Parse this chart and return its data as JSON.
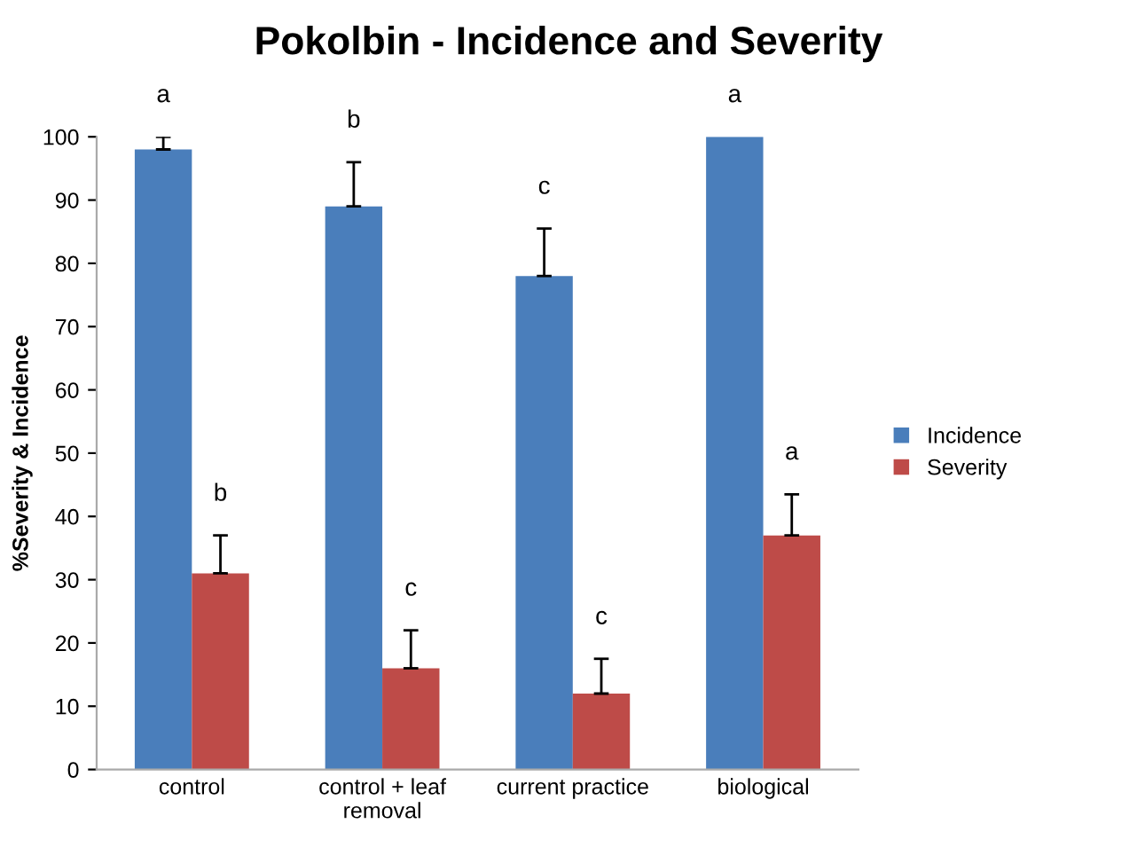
{
  "chart_data": {
    "type": "bar",
    "title": "Pokolbin - Incidence and Severity",
    "ylabel": "%Severity & Incidence",
    "categories": [
      "control",
      "control + leaf removal",
      "current practice",
      "biological"
    ],
    "series": [
      {
        "name": "Incidence",
        "color": "#4a7ebb",
        "values": [
          98,
          89,
          78,
          100
        ],
        "errors": [
          [
            98,
            100
          ],
          [
            89,
            96
          ],
          [
            78,
            85.5
          ],
          null
        ]
      },
      {
        "name": "Severity",
        "color": "#be4b48",
        "values": [
          31,
          16,
          12,
          37
        ],
        "errors": [
          [
            31,
            37
          ],
          [
            16,
            22
          ],
          [
            12,
            17.5
          ],
          [
            37,
            43.5
          ]
        ]
      }
    ],
    "annotations": [
      "a",
      "b",
      "c",
      "a",
      "b",
      "c",
      "c",
      "a"
    ],
    "ylim": [
      0,
      100
    ],
    "yticks": [
      0,
      10,
      20,
      30,
      40,
      50,
      60,
      70,
      80,
      90,
      100
    ],
    "grid": false,
    "legend": "right"
  }
}
